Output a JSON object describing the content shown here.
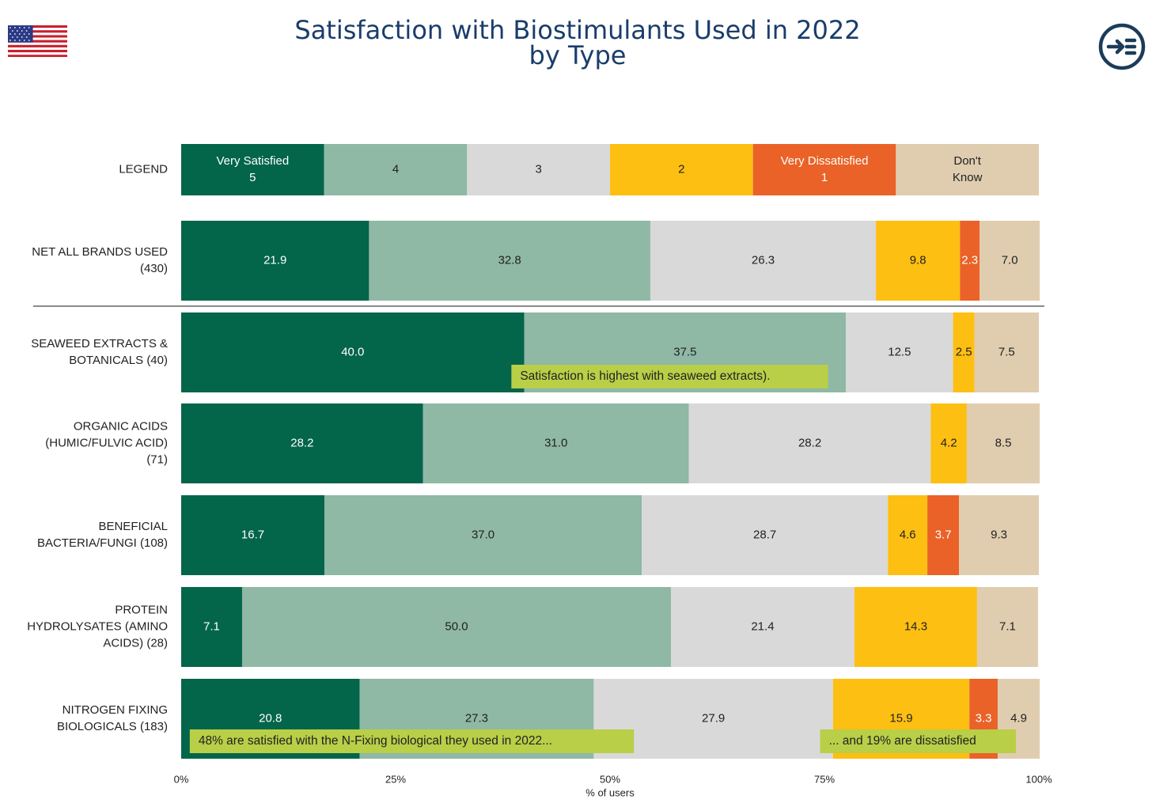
{
  "title": [
    "Satisfaction with Biostimulants Used in 2022",
    "by Type"
  ],
  "icons": {
    "flag": "us-flag-icon",
    "logo": "arrow-right-circle-logo-icon"
  },
  "colors": {
    "very_satisfied": "#03654a",
    "four": "#8fb8a5",
    "three": "#d9d9d9",
    "two": "#fdbf12",
    "very_dissatisfied": "#ea6227",
    "dont_know": "#e0cdb0",
    "callout_bg": "#b8cf47",
    "title": "#1a3d6b"
  },
  "legend": [
    {
      "label": [
        "Very Satisfied",
        "5"
      ],
      "color": "#03654a",
      "text_color": "#ffffff"
    },
    {
      "label": [
        "4"
      ],
      "color": "#8fb8a5",
      "text_color": "#222222"
    },
    {
      "label": [
        "3"
      ],
      "color": "#d9d9d9",
      "text_color": "#222222"
    },
    {
      "label": [
        "2"
      ],
      "color": "#fdbf12",
      "text_color": "#222222"
    },
    {
      "label": [
        "Very Dissatisfied",
        "1"
      ],
      "color": "#ea6227",
      "text_color": "#ffffff"
    },
    {
      "label": [
        "Don't",
        "Know"
      ],
      "color": "#e0cdb0",
      "text_color": "#222222"
    }
  ],
  "chart_data": {
    "type": "bar",
    "stacked": true,
    "orientation": "horizontal",
    "legend_row_label": "LEGEND",
    "categories": [
      [
        "NET ALL BRANDS USED",
        "(430)"
      ],
      [
        "SEAWEED EXTRACTS &",
        "BOTANICALS (40)"
      ],
      [
        "ORGANIC ACIDS",
        "(HUMIC/FULVIC ACID)",
        "(71)"
      ],
      [
        "BENEFICIAL",
        "BACTERIA/FUNGI (108)"
      ],
      [
        "PROTEIN",
        "HYDROLYSATES (AMINO",
        "ACIDS) (28)"
      ],
      [
        "NITROGEN FIXING",
        "BIOLOGICALS (183)"
      ]
    ],
    "series": [
      {
        "name": "Very Satisfied 5",
        "values": [
          21.9,
          40.0,
          28.2,
          16.7,
          7.1,
          20.8
        ]
      },
      {
        "name": "4",
        "values": [
          32.8,
          37.5,
          31.0,
          37.0,
          50.0,
          27.3
        ]
      },
      {
        "name": "3",
        "values": [
          26.3,
          12.5,
          28.2,
          28.7,
          21.4,
          27.9
        ]
      },
      {
        "name": "2",
        "values": [
          9.8,
          2.5,
          4.2,
          4.6,
          14.3,
          15.9
        ]
      },
      {
        "name": "Very Dissatisfied 1",
        "values": [
          2.3,
          0,
          0,
          3.7,
          0,
          3.3
        ]
      },
      {
        "name": "Don't Know",
        "values": [
          7.0,
          7.5,
          8.5,
          9.3,
          7.1,
          4.9
        ]
      }
    ],
    "xlabel": "% of users",
    "xticks": [
      "0%",
      "25%",
      "50%",
      "75%",
      "100%"
    ],
    "xlim": [
      0,
      100
    ],
    "grid": false,
    "annotations": [
      {
        "text": "Satisfaction is highest with seaweed extracts).",
        "category_index": 1,
        "x": 38.5
      },
      {
        "text": "48% are satisfied with the N-Fixing biological they used in 2022...",
        "category_index": 5,
        "x": 1
      },
      {
        "text": "... and 19% are dissatisfied",
        "category_index": 5,
        "x": 74.5
      }
    ]
  }
}
